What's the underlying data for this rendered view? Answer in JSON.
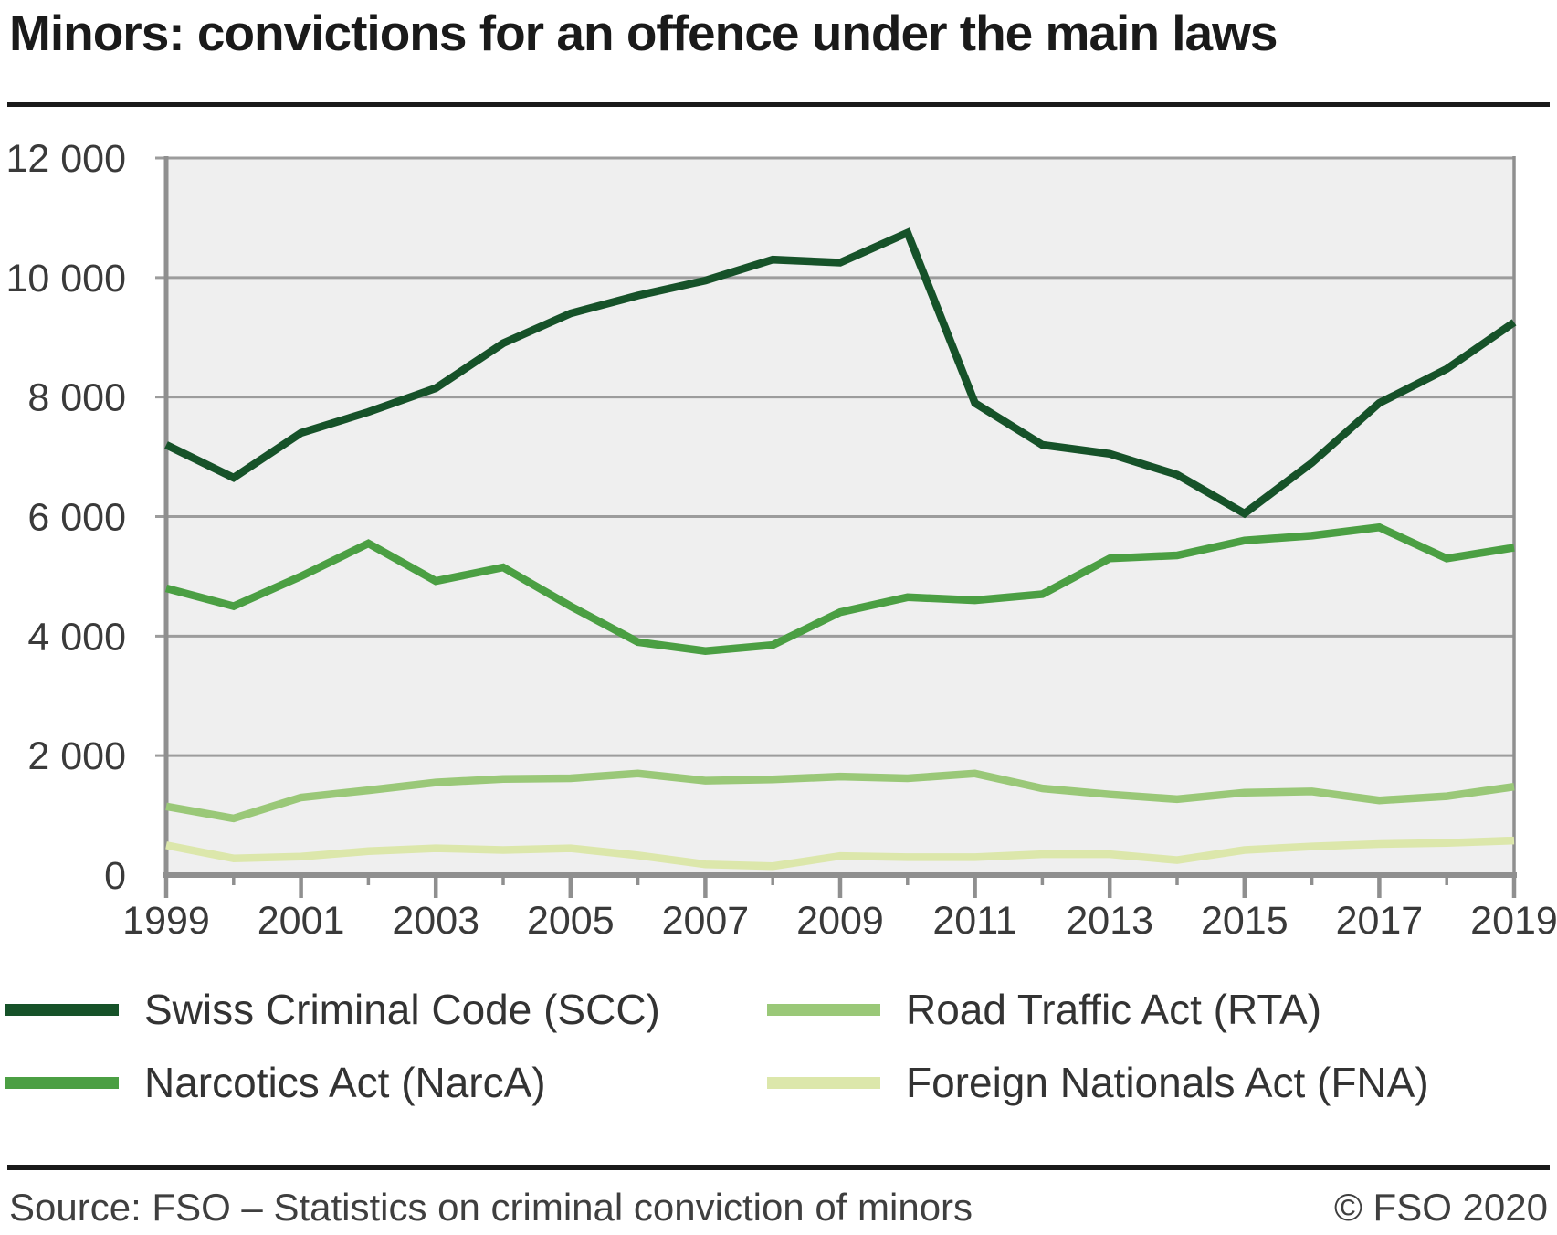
{
  "title": "Minors: convictions for an offence under the main laws",
  "footer": {
    "source": "Source: FSO – Statistics on criminal conviction of minors",
    "copyright": "© FSO 2020"
  },
  "colors": {
    "plot_bg": "#efefef",
    "grid": "#9c9c9c",
    "axis": "#8f8f8f",
    "title_text": "#1a1a1a",
    "axis_text": "#3a3a3a",
    "legend_text": "#333333"
  },
  "chart_data": {
    "type": "line",
    "title": "Minors: convictions for an offence under the main laws",
    "xlabel": "",
    "ylabel": "",
    "ylim": [
      0,
      12000
    ],
    "y_tick_step": 2000,
    "grid": true,
    "legend_position": "bottom",
    "x": [
      1999,
      2000,
      2001,
      2002,
      2003,
      2004,
      2005,
      2006,
      2007,
      2008,
      2009,
      2010,
      2011,
      2012,
      2013,
      2014,
      2015,
      2016,
      2017,
      2018,
      2019
    ],
    "x_tick_labels": [
      "1999",
      "2001",
      "2003",
      "2005",
      "2007",
      "2009",
      "2011",
      "2013",
      "2015",
      "2017",
      "2019"
    ],
    "y_tick_labels": [
      "0",
      "2 000",
      "4 000",
      "6 000",
      "8 000",
      "10 000",
      "12 000"
    ],
    "series": [
      {
        "name": "Swiss Criminal Code (SCC)",
        "color": "#165229",
        "values": [
          7200,
          6650,
          7400,
          7750,
          8150,
          8900,
          9400,
          9700,
          9950,
          10300,
          10250,
          10750,
          7900,
          7200,
          7050,
          6700,
          6050,
          6900,
          7900,
          8470,
          9250
        ]
      },
      {
        "name": "Narcotics Act (NarcA)",
        "color": "#4b9f43",
        "values": [
          4800,
          4500,
          5000,
          5550,
          4920,
          5150,
          4500,
          3900,
          3750,
          3850,
          4400,
          4650,
          4600,
          4700,
          5300,
          5350,
          5600,
          5680,
          5820,
          5300,
          5480
        ]
      },
      {
        "name": "Road Traffic Act (RTA)",
        "color": "#9ac878",
        "values": [
          1150,
          950,
          1300,
          1420,
          1550,
          1610,
          1620,
          1700,
          1580,
          1600,
          1650,
          1620,
          1700,
          1450,
          1350,
          1270,
          1380,
          1400,
          1250,
          1320,
          1480
        ]
      },
      {
        "name": "Foreign Nationals Act (FNA)",
        "color": "#dce7ab",
        "values": [
          500,
          280,
          310,
          400,
          450,
          420,
          450,
          330,
          180,
          150,
          320,
          300,
          300,
          350,
          350,
          250,
          420,
          480,
          520,
          540,
          580
        ]
      }
    ]
  },
  "legend": {
    "items": [
      {
        "label": "Swiss Criminal Code (SCC)"
      },
      {
        "label": "Narcotics Act (NarcA)"
      },
      {
        "label": "Road Traffic Act (RTA)"
      },
      {
        "label": "Foreign Nationals Act (FNA)"
      }
    ]
  }
}
